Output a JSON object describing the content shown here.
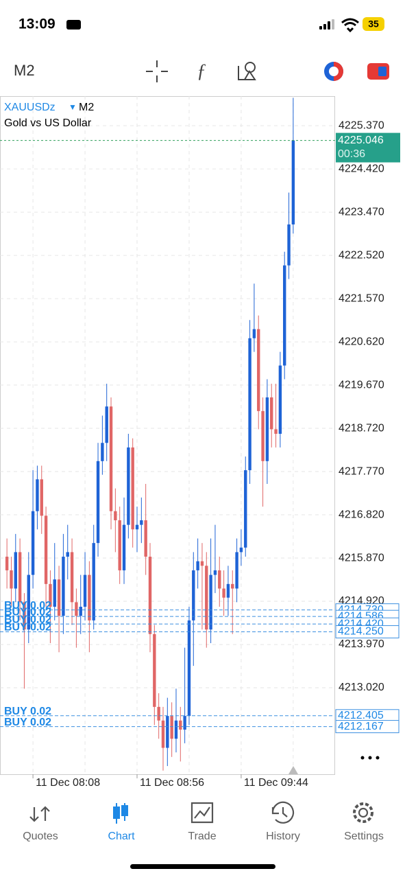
{
  "status": {
    "time": "13:09",
    "battery": "35"
  },
  "toolbar": {
    "timeframe": "M2"
  },
  "chart_data": {
    "type": "candlestick",
    "symbol": "XAUUSDz",
    "timeframe": "M2",
    "description": "Gold vs US Dollar",
    "up_color": "#1e63d6",
    "down_color": "#e06666",
    "grid": true,
    "open": [
      4215.9,
      4215.6,
      4215.2,
      4216.0,
      4214.9,
      4214.3,
      4215.5,
      4216.9,
      4217.6,
      4216.8,
      4215.3,
      4214.8,
      4215.4,
      4214.6,
      4215.9,
      4216.0,
      4214.9,
      4214.6,
      4214.8,
      4215.5,
      4214.5,
      4216.2,
      4218.0,
      4218.4,
      4219.2,
      4216.9,
      4216.7,
      4215.6,
      4216.6,
      4218.3,
      4216.5,
      4216.6,
      4216.7,
      4215.9,
      4214.2,
      4212.6,
      4212.3,
      4211.7,
      4212.4,
      4211.9,
      4212.3,
      4212.1,
      4212.4,
      4214.5,
      4215.6,
      4215.8,
      4215.7,
      4214.3,
      4215.5,
      4215.6,
      4215.2,
      4215.0,
      4215.3,
      4215.2,
      4216.0,
      4216.1,
      4217.8,
      4220.7,
      4220.9,
      4219.1,
      4218.0,
      4219.4,
      4218.7,
      4218.6,
      4220.1,
      4222.3,
      4223.2
    ],
    "high": [
      4216.3,
      4215.9,
      4216.4,
      4216.3,
      4215.1,
      4216.0,
      4217.8,
      4217.9,
      4217.9,
      4217.0,
      4215.6,
      4216.2,
      4215.7,
      4216.4,
      4216.6,
      4216.3,
      4215.2,
      4215.5,
      4216.0,
      4215.8,
      4216.6,
      4218.4,
      4219.0,
      4219.7,
      4219.4,
      4217.4,
      4217.0,
      4217.2,
      4218.6,
      4218.5,
      4217.0,
      4217.2,
      4217.5,
      4216.2,
      4214.4,
      4212.9,
      4212.6,
      4212.8,
      4212.7,
      4213.0,
      4212.6,
      4213.9,
      4214.8,
      4216.0,
      4216.3,
      4216.2,
      4216.0,
      4216.3,
      4216.6,
      4215.9,
      4215.6,
      4215.7,
      4215.6,
      4216.3,
      4216.5,
      4218.1,
      4221.1,
      4221.9,
      4221.2,
      4219.4,
      4219.8,
      4219.7,
      4219.7,
      4220.4,
      4222.6,
      4223.9,
      4225.98
    ],
    "low": [
      4215.2,
      4214.8,
      4214.9,
      4214.5,
      4213.0,
      4214.0,
      4215.2,
      4216.5,
      4216.4,
      4214.8,
      4214.0,
      4214.5,
      4213.8,
      4214.2,
      4215.4,
      4214.4,
      4213.9,
      4214.2,
      4214.5,
      4213.8,
      4214.3,
      4215.9,
      4217.7,
      4218.0,
      4216.5,
      4216.0,
      4215.3,
      4215.3,
      4216.3,
      4216.1,
      4216.0,
      4216.2,
      4215.5,
      4213.8,
      4212.2,
      4211.9,
      4211.2,
      4211.3,
      4211.5,
      4211.6,
      4211.4,
      4211.8,
      4212.2,
      4213.5,
      4215.2,
      4214.3,
      4213.9,
      4214.0,
      4215.1,
      4214.8,
      4214.6,
      4214.6,
      4214.2,
      4214.9,
      4215.7,
      4215.9,
      4217.5,
      4220.4,
      4218.7,
      4217.0,
      4217.5,
      4218.3,
      4218.3,
      4218.3,
      4219.8,
      4222.0,
      4223.0
    ],
    "close": [
      4215.6,
      4215.2,
      4216.0,
      4214.9,
      4214.3,
      4215.5,
      4216.9,
      4217.6,
      4216.8,
      4215.3,
      4214.8,
      4215.4,
      4214.6,
      4215.9,
      4216.0,
      4214.9,
      4214.6,
      4214.8,
      4215.5,
      4214.5,
      4216.2,
      4218.0,
      4218.4,
      4219.2,
      4216.9,
      4216.7,
      4215.6,
      4216.6,
      4218.3,
      4216.5,
      4216.6,
      4216.7,
      4215.9,
      4214.2,
      4212.6,
      4212.3,
      4211.7,
      4212.4,
      4211.9,
      4212.3,
      4212.1,
      4212.4,
      4214.5,
      4215.6,
      4215.8,
      4215.7,
      4214.3,
      4215.5,
      4215.6,
      4215.2,
      4215.0,
      4215.3,
      4215.2,
      4216.0,
      4216.1,
      4217.8,
      4220.7,
      4220.9,
      4219.1,
      4218.0,
      4219.4,
      4218.7,
      4218.6,
      4220.1,
      4222.3,
      4223.2,
      4225.046
    ],
    "xlim": [
      -1.6,
      75.5
    ],
    "xticks": [
      {
        "value": 6,
        "label": "11 Dec 08:08"
      },
      {
        "value": 30,
        "label": "11 Dec 08:56"
      },
      {
        "value": 54,
        "label": "11 Dec 09:44"
      }
    ],
    "xgrid": [
      6,
      18,
      30,
      42,
      54,
      66
    ],
    "ylim": [
      4211.12,
      4226.02
    ],
    "yticks": [
      {
        "value": 4225.37,
        "label": "4225.370"
      },
      {
        "value": 4224.42,
        "label": "4224.420"
      },
      {
        "value": 4223.47,
        "label": "4223.470"
      },
      {
        "value": 4222.52,
        "label": "4222.520"
      },
      {
        "value": 4221.57,
        "label": "4221.570"
      },
      {
        "value": 4220.62,
        "label": "4220.620"
      },
      {
        "value": 4219.67,
        "label": "4219.670"
      },
      {
        "value": 4218.72,
        "label": "4218.720"
      },
      {
        "value": 4217.77,
        "label": "4217.770"
      },
      {
        "value": 4216.82,
        "label": "4216.820"
      },
      {
        "value": 4215.87,
        "label": "4215.870"
      },
      {
        "value": 4214.92,
        "label": "4214.920"
      },
      {
        "value": 4213.97,
        "label": "4213.970"
      },
      {
        "value": 4213.02,
        "label": "4213.020"
      }
    ],
    "current_price": 4225.046,
    "countdown": "00:36",
    "orders": [
      {
        "name": "BUY 0.02",
        "price": {
          "value": 4214.73,
          "label": "4214.730"
        }
      },
      {
        "name": "BUY 0.02",
        "price": {
          "value": 4214.586,
          "label": "4214.586"
        }
      },
      {
        "name": "BUY 0.02",
        "price": {
          "value": 4214.42,
          "label": "4214.420"
        }
      },
      {
        "name": "BUY 0.02",
        "price": {
          "value": 4214.25,
          "label": "4214.250"
        }
      },
      {
        "name": "BUY 0.02",
        "price": {
          "value": 4212.405,
          "label": "4212.405"
        }
      },
      {
        "name": "BUY 0.02",
        "price": {
          "value": 4212.167,
          "label": "4212.167"
        }
      }
    ]
  },
  "nav": [
    "Quotes",
    "Chart",
    "Trade",
    "History",
    "Settings"
  ]
}
